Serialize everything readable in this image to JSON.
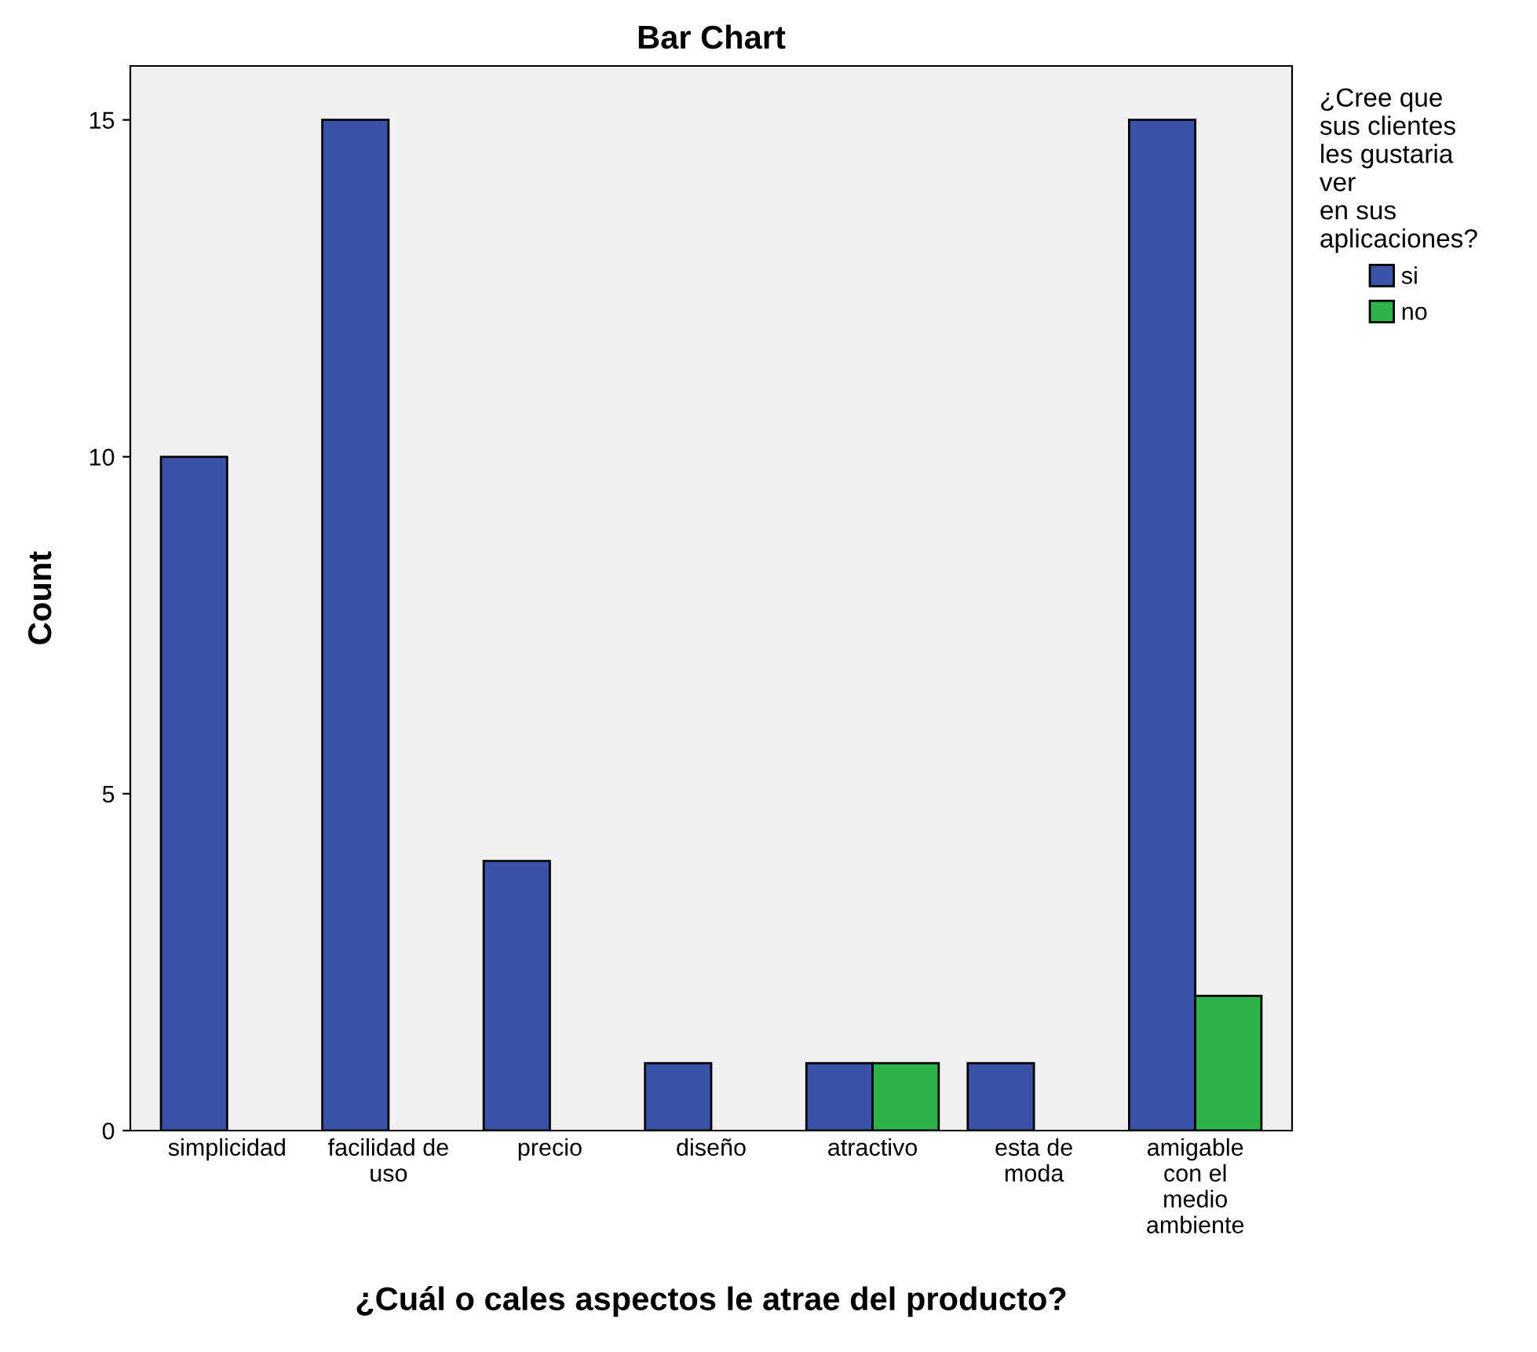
{
  "chart_data": {
    "type": "bar",
    "title": "Bar Chart",
    "xlabel": "¿Cuál o cales aspectos le atrae del producto?",
    "ylabel": "Count",
    "legend_title": "¿Cree que\nsus clientes\nles gustaria\nver\nen sus\naplicaciones?",
    "categories": [
      "simplicidad",
      "facilidad de\nuso",
      "precio",
      "diseño",
      "atractivo",
      "esta de\nmoda",
      "amigable\ncon el\nmedio\nambiente"
    ],
    "series": [
      {
        "name": "si",
        "color": "#3b53a6",
        "values": [
          10,
          15,
          4,
          1,
          1,
          1,
          15
        ]
      },
      {
        "name": "no",
        "color": "#2db34a",
        "values": [
          null,
          null,
          null,
          null,
          1,
          null,
          2
        ]
      }
    ],
    "ylim": [
      0,
      15.8
    ],
    "yticks": [
      0,
      5,
      10,
      15
    ],
    "grid": false,
    "legend": "top right"
  }
}
